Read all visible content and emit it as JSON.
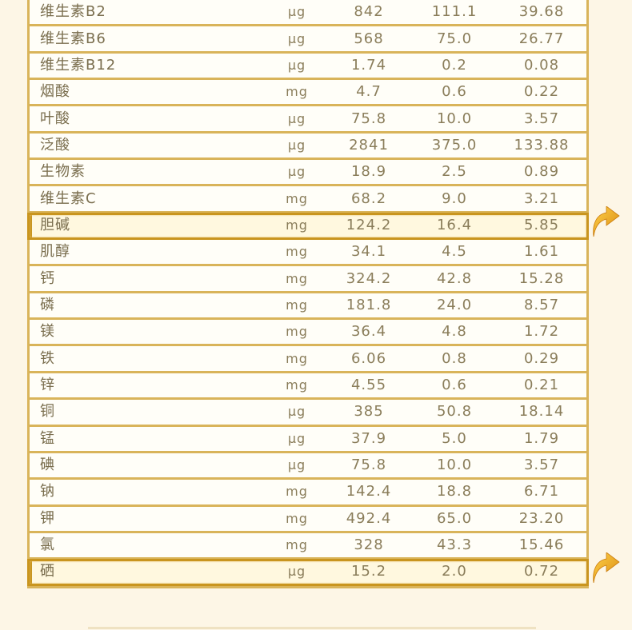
{
  "rows": [
    {
      "name": "维生素B2",
      "unit": "μg",
      "v1": "842",
      "v2": "111.1",
      "v3": "39.68",
      "highlight": false
    },
    {
      "name": "维生素B6",
      "unit": "μg",
      "v1": "568",
      "v2": "75.0",
      "v3": "26.77",
      "highlight": false
    },
    {
      "name": "维生素B12",
      "unit": "μg",
      "v1": "1.74",
      "v2": "0.2",
      "v3": "0.08",
      "highlight": false
    },
    {
      "name": "烟酸",
      "unit": "mg",
      "v1": "4.7",
      "v2": "0.6",
      "v3": "0.22",
      "highlight": false
    },
    {
      "name": "叶酸",
      "unit": "μg",
      "v1": "75.8",
      "v2": "10.0",
      "v3": "3.57",
      "highlight": false
    },
    {
      "name": "泛酸",
      "unit": "μg",
      "v1": "2841",
      "v2": "375.0",
      "v3": "133.88",
      "highlight": false
    },
    {
      "name": "生物素",
      "unit": "μg",
      "v1": "18.9",
      "v2": "2.5",
      "v3": "0.89",
      "highlight": false
    },
    {
      "name": "维生素C",
      "unit": "mg",
      "v1": "68.2",
      "v2": "9.0",
      "v3": "3.21",
      "highlight": false
    },
    {
      "name": "胆碱",
      "unit": "mg",
      "v1": "124.2",
      "v2": "16.4",
      "v3": "5.85",
      "highlight": true
    },
    {
      "name": "肌醇",
      "unit": "mg",
      "v1": "34.1",
      "v2": "4.5",
      "v3": "1.61",
      "highlight": false
    },
    {
      "name": "钙",
      "unit": "mg",
      "v1": "324.2",
      "v2": "42.8",
      "v3": "15.28",
      "highlight": false
    },
    {
      "name": "磷",
      "unit": "mg",
      "v1": "181.8",
      "v2": "24.0",
      "v3": "8.57",
      "highlight": false
    },
    {
      "name": "镁",
      "unit": "mg",
      "v1": "36.4",
      "v2": "4.8",
      "v3": "1.72",
      "highlight": false
    },
    {
      "name": "铁",
      "unit": "mg",
      "v1": "6.06",
      "v2": "0.8",
      "v3": "0.29",
      "highlight": false
    },
    {
      "name": "锌",
      "unit": "mg",
      "v1": "4.55",
      "v2": "0.6",
      "v3": "0.21",
      "highlight": false
    },
    {
      "name": "铜",
      "unit": "μg",
      "v1": "385",
      "v2": "50.8",
      "v3": "18.14",
      "highlight": false
    },
    {
      "name": "锰",
      "unit": "μg",
      "v1": "37.9",
      "v2": "5.0",
      "v3": "1.79",
      "highlight": false
    },
    {
      "name": "碘",
      "unit": "μg",
      "v1": "75.8",
      "v2": "10.0",
      "v3": "3.57",
      "highlight": false
    },
    {
      "name": "钠",
      "unit": "mg",
      "v1": "142.4",
      "v2": "18.8",
      "v3": "6.71",
      "highlight": false
    },
    {
      "name": "钾",
      "unit": "mg",
      "v1": "492.4",
      "v2": "65.0",
      "v3": "23.20",
      "highlight": false
    },
    {
      "name": "氯",
      "unit": "mg",
      "v1": "328",
      "v2": "43.3",
      "v3": "15.46",
      "highlight": false
    },
    {
      "name": "硒",
      "unit": "μg",
      "v1": "15.2",
      "v2": "2.0",
      "v3": "0.72",
      "highlight": true
    }
  ],
  "icons": {
    "highlight_marker": "up-arrow-icon"
  },
  "colors": {
    "border": "#d9b45a",
    "highlight_frame": "#c9951f",
    "arrow": "#e8a820"
  }
}
